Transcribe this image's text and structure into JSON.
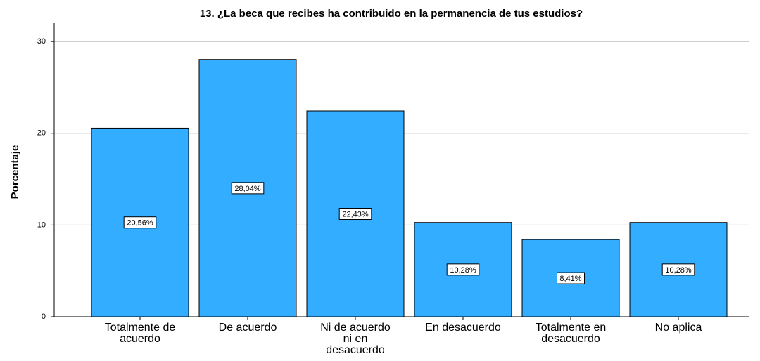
{
  "chart_data": {
    "type": "bar",
    "title": "13. ¿La beca que recibes ha contribuido en la permanencia de tus estudios?",
    "ylabel": "Porcentaje",
    "categories": [
      "Totalmente de acuerdo",
      "De acuerdo",
      "Ni de acuerdo ni en desacuerdo",
      "En desacuerdo",
      "Totalmente en desacuerdo",
      "No aplica"
    ],
    "values": [
      20.56,
      28.04,
      22.43,
      10.28,
      8.41,
      10.28
    ],
    "value_labels": [
      "20,56%",
      "28,04%",
      "22,43%",
      "10,28%",
      "8,41%",
      "10,28%"
    ],
    "color": "#33adff",
    "ylim": [
      0,
      32
    ],
    "yticks": [
      0,
      10,
      20,
      30
    ],
    "grid": true
  }
}
